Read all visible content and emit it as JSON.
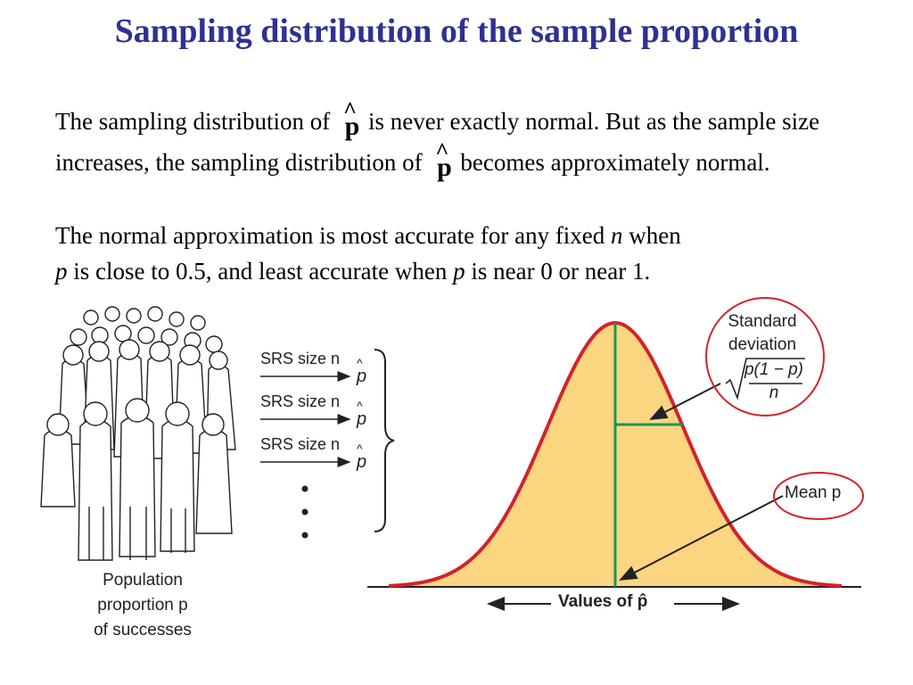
{
  "title": "Sampling distribution of the sample proportion",
  "paragraph1": {
    "part1": "The sampling distribution of ",
    "symbol": "p",
    "part2": "is never exactly normal. But as the sample size increases, the sampling distribution of ",
    "part3": "becomes approximately normal."
  },
  "paragraph2": {
    "part1": "The normal approximation is most accurate for any fixed ",
    "n": "n",
    "part2": " when ",
    "p1": "p",
    "part3": " is close to 0.5, and least accurate when ",
    "p2": "p",
    "part4": " is near 0 or near 1."
  },
  "population": {
    "line1": "Population",
    "line2": "proportion p",
    "line3": "of successes"
  },
  "srs": {
    "label": "SRS size n",
    "count": 3
  },
  "curve": {
    "sd_line1": "Standard",
    "sd_line2": "deviation",
    "sd_formula_num": "p(1 − p)",
    "sd_formula_den": "n",
    "mean_label": "Mean p",
    "axis_label": "Values of p̂",
    "fill_color": "#fcd581",
    "curve_color": "#d2232a",
    "line_color": "#1a9850",
    "circle_color": "#d2232a"
  }
}
